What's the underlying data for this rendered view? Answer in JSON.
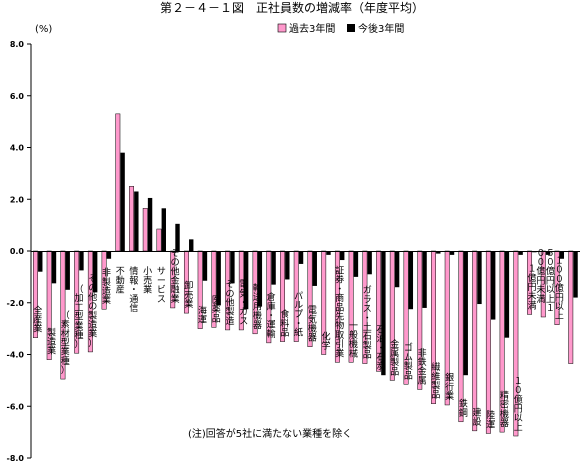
{
  "chart_data": {
    "type": "bar",
    "title": "第２－４－１図　正社員数の増減率（年度平均）",
    "unit": "(%)",
    "ylim": [
      -8.0,
      8.0
    ],
    "yticks": [
      "8.0",
      "6.0",
      "4.0",
      "2.0",
      "0.0",
      "-2.0",
      "-4.0",
      "-6.0",
      "-8.0"
    ],
    "ytick_values": [
      8,
      6,
      4,
      2,
      0,
      -2,
      -4,
      -6,
      -8
    ],
    "grid": false,
    "legend_position": "top",
    "note": "(注)回答が5社に満たない業種を除く",
    "series": [
      {
        "name": "過去3年間",
        "color": "#ff99cc",
        "values": [
          -3.35,
          -4.2,
          -4.95,
          -3.95,
          -3.9,
          -2.25,
          5.3,
          2.5,
          1.65,
          0.85,
          -2.2,
          -2.4,
          -3.0,
          -2.95,
          -3.05,
          -3.05,
          -3.2,
          -3.55,
          -3.5,
          -3.5,
          -3.7,
          -4.0,
          -4.3,
          -4.3,
          -4.35,
          -4.65,
          -5.0,
          -5.15,
          -5.35,
          -5.9,
          -5.95,
          -6.6,
          -6.95,
          -7.05,
          -7.0,
          -7.15,
          -2.45,
          -2.55,
          -2.85,
          -4.35
        ]
      },
      {
        "name": "今後3年間",
        "color": "#000000",
        "values": [
          -0.8,
          -1.25,
          -1.5,
          -0.75,
          -1.6,
          -0.3,
          3.8,
          2.3,
          2.05,
          1.65,
          1.05,
          0.45,
          -1.15,
          -2.1,
          -1.25,
          -2.25,
          -2.15,
          -1.3,
          -1.1,
          -0.5,
          -1.35,
          -0.15,
          -0.35,
          -1.0,
          -0.9,
          -4.8,
          -1.4,
          -2.25,
          -2.2,
          -0.1,
          -0.15,
          -4.8,
          -2.05,
          -2.65,
          -3.35,
          -0.15,
          -0.05,
          -0.15,
          -0.3,
          -1.8
        ]
      }
    ],
    "categories": [
      {
        "label": "全産業",
        "cols": [
          "全",
          "産",
          "業"
        ]
      },
      {
        "label": "製造業",
        "cols": [
          "製",
          "造",
          "業"
        ]
      },
      {
        "label": "（素材型業種）",
        "cols": [
          "（",
          "素",
          "材",
          "型",
          "業",
          "種",
          "）"
        ]
      },
      {
        "label": "（加工型業種）",
        "cols": [
          "（",
          "加",
          "工",
          "型",
          "業",
          "種",
          "）"
        ]
      },
      {
        "label": "（その他の製造業）",
        "cols": [
          "（",
          "そ",
          "の",
          "他",
          "の",
          "製",
          "造",
          "業",
          "）"
        ]
      },
      {
        "label": "非製造業",
        "cols": [
          "非",
          "製",
          "造",
          "業"
        ]
      },
      {
        "label": "不動産",
        "cols": [
          "不",
          "動",
          "産"
        ]
      },
      {
        "label": "情報・通信",
        "cols": [
          "情",
          "報",
          "・",
          "通",
          "信"
        ]
      },
      {
        "label": "小売業",
        "cols": [
          "小",
          "売",
          "業"
        ]
      },
      {
        "label": "サービス",
        "cols": [
          "サ",
          "ー",
          "ビ",
          "ス"
        ]
      },
      {
        "label": "その他金融業",
        "cols": [
          "そ",
          "の",
          "他",
          "金",
          "融",
          "業"
        ]
      },
      {
        "label": "卸売業",
        "cols": [
          "卸",
          "売",
          "業"
        ]
      },
      {
        "label": "海運",
        "cols": [
          "海",
          "運"
        ]
      },
      {
        "label": "医薬品",
        "cols": [
          "医",
          "薬",
          "品"
        ]
      },
      {
        "label": "その他製造",
        "cols": [
          "そ",
          "の",
          "他",
          "製",
          "造"
        ]
      },
      {
        "label": "電気・ガス",
        "cols": [
          "電",
          "気",
          "・",
          "ガ",
          "ス"
        ]
      },
      {
        "label": "輸送用機器",
        "cols": [
          "輸",
          "送",
          "用",
          "機",
          "器"
        ]
      },
      {
        "label": "倉庫・運輸",
        "cols": [
          "倉",
          "庫",
          "・",
          "運",
          "輸"
        ]
      },
      {
        "label": "食料品",
        "cols": [
          "食",
          "料",
          "品"
        ]
      },
      {
        "label": "パルプ・紙",
        "cols": [
          "パ",
          "ル",
          "プ",
          "・",
          "紙"
        ]
      },
      {
        "label": "電気機器",
        "cols": [
          "電",
          "気",
          "機",
          "器"
        ]
      },
      {
        "label": "化学",
        "cols": [
          "化",
          "学"
        ]
      },
      {
        "label": "証券・商品先物取引業",
        "cols": [
          "証",
          "券",
          "・",
          "商",
          "品",
          "先",
          "物",
          "取",
          "引",
          "業"
        ]
      },
      {
        "label": "一般機械",
        "cols": [
          "一",
          "般",
          "機",
          "械"
        ]
      },
      {
        "label": "ガラス・土石製品",
        "cols": [
          "ガ",
          "ラ",
          "ス",
          "・",
          "土",
          "石",
          "製",
          "品"
        ]
      },
      {
        "label": "石油・石炭",
        "cols": [
          "石",
          "油",
          "・",
          "石",
          "炭"
        ]
      },
      {
        "label": "金属製品",
        "cols": [
          "金",
          "属",
          "製",
          "品"
        ]
      },
      {
        "label": "ゴム製品",
        "cols": [
          "ゴ",
          "ム",
          "製",
          "品"
        ]
      },
      {
        "label": "非鉄金属",
        "cols": [
          "非",
          "鉄",
          "金",
          "属"
        ]
      },
      {
        "label": "繊維製品",
        "cols": [
          "繊",
          "維",
          "製",
          "品"
        ]
      },
      {
        "label": "銀行業",
        "cols": [
          "銀",
          "行",
          "業"
        ]
      },
      {
        "label": "鉄鋼",
        "cols": [
          "鉄",
          "鋼"
        ]
      },
      {
        "label": "建設",
        "cols": [
          "建",
          "設"
        ]
      },
      {
        "label": "陸運",
        "cols": [
          "陸",
          "運"
        ]
      },
      {
        "label": "精密機器",
        "cols": [
          "精",
          "密",
          "機",
          "器"
        ]
      },
      {
        "label": "10億円以上",
        "cols": [
          "１",
          "０",
          "億",
          "円",
          "以",
          "上"
        ]
      },
      {
        "label": "1億円未満",
        "cols": [
          "１",
          "億",
          "円",
          "未",
          "満"
        ]
      },
      {
        "label": "50億円以上100億円未満",
        "cols": [
          "５",
          "０",
          "億",
          "円",
          "以",
          "上",
          "１",
          "０",
          "０",
          "億",
          "円",
          "未",
          "満"
        ]
      },
      {
        "label": "100億円以上",
        "cols": [
          "１",
          "０",
          "０",
          "億",
          "円",
          "以",
          "上"
        ]
      },
      {
        "label": "",
        "cols": []
      }
    ]
  }
}
